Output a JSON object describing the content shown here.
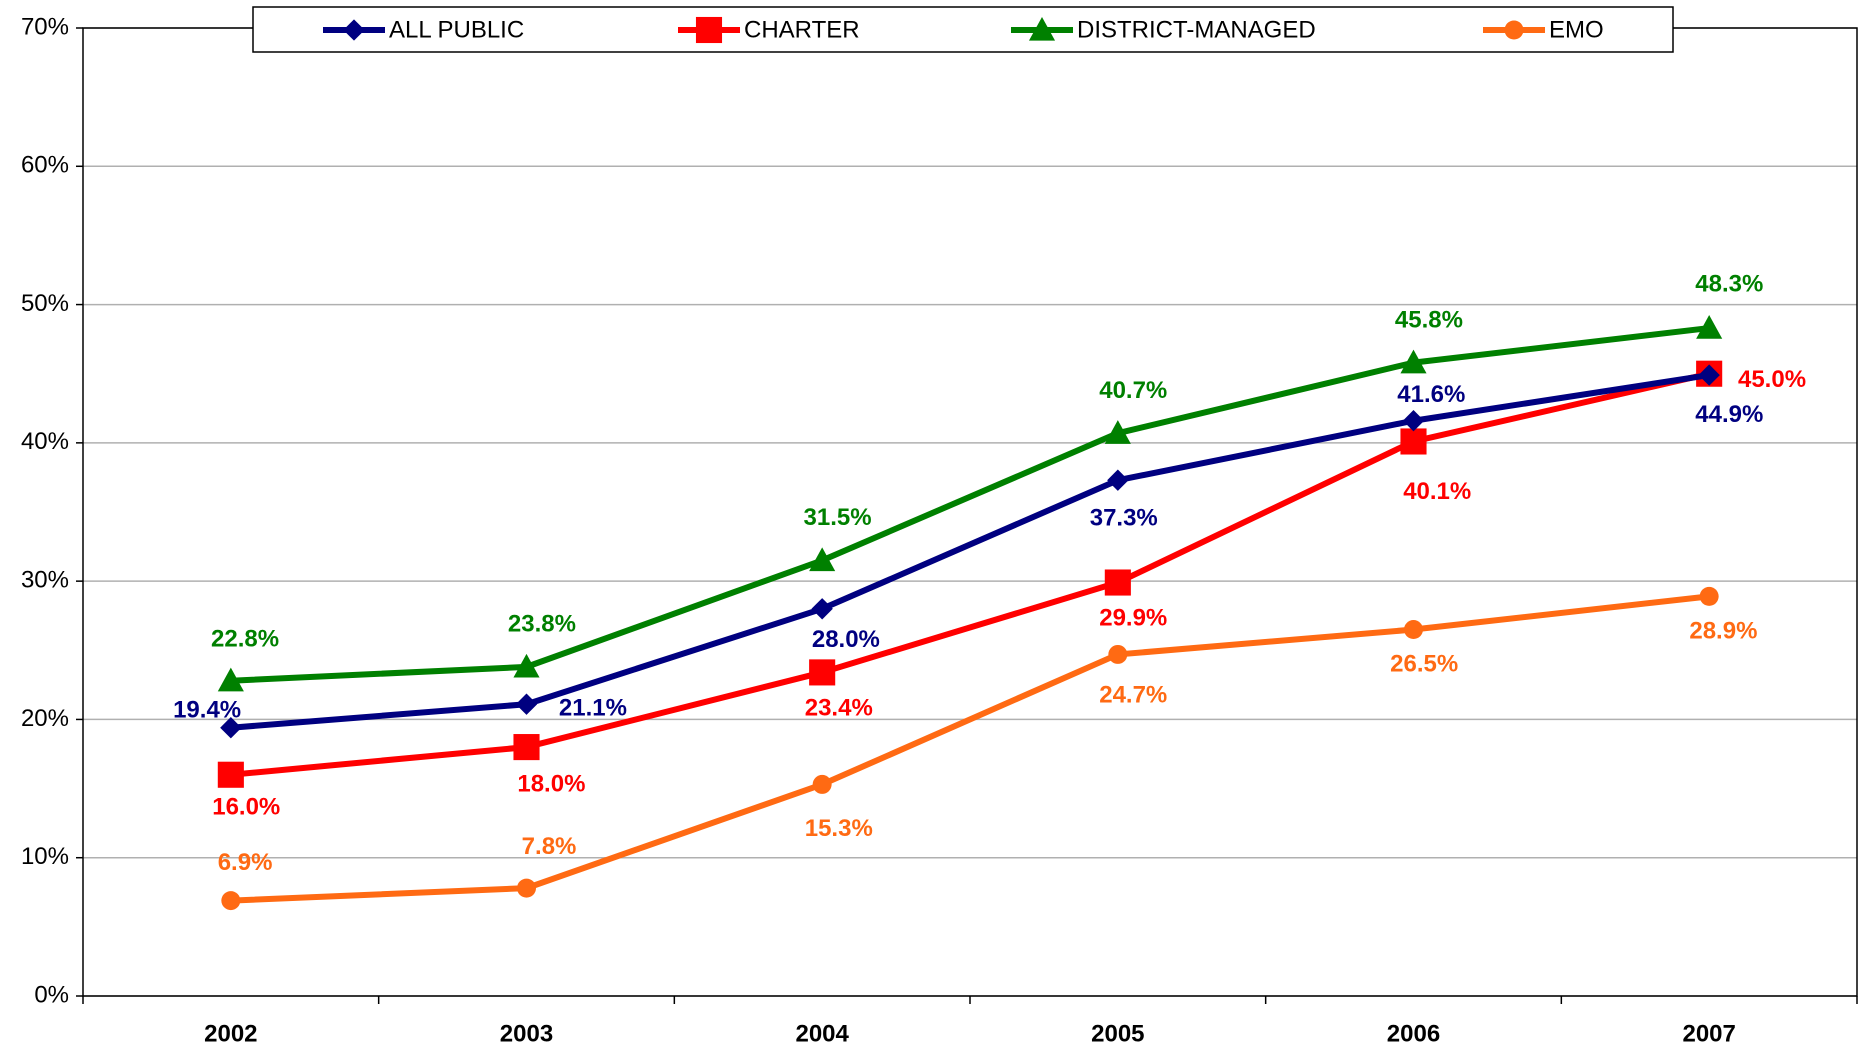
{
  "chart_data": {
    "type": "line",
    "categories": [
      "2002",
      "2003",
      "2004",
      "2005",
      "2006",
      "2007"
    ],
    "series": [
      {
        "name": "ALL PUBLIC",
        "color": "#000080",
        "marker": "diamond",
        "values": [
          19.4,
          21.1,
          28.0,
          37.3,
          41.6,
          44.9
        ],
        "value_labels": [
          "19.4%",
          "21.1%",
          "28.0%",
          "37.3%",
          "41.6%",
          "44.9%"
        ]
      },
      {
        "name": "CHARTER",
        "color": "#ff0000",
        "marker": "square",
        "values": [
          16.0,
          18.0,
          23.4,
          29.9,
          40.1,
          45.0
        ],
        "value_labels": [
          "16.0%",
          "18.0%",
          "23.4%",
          "29.9%",
          "40.1%",
          "45.0%"
        ]
      },
      {
        "name": "DISTRICT-MANAGED",
        "color": "#008000",
        "marker": "triangle",
        "values": [
          22.8,
          23.8,
          31.5,
          40.7,
          45.8,
          48.3
        ],
        "value_labels": [
          "22.8%",
          "23.8%",
          "31.5%",
          "40.7%",
          "45.8%",
          "48.3%"
        ]
      },
      {
        "name": "EMO",
        "color": "#ff6a13",
        "marker": "circle",
        "values": [
          6.9,
          7.8,
          15.3,
          24.7,
          26.5,
          28.9
        ],
        "value_labels": [
          "6.9%",
          "7.8%",
          "15.3%",
          "24.7%",
          "26.5%",
          "28.9%"
        ]
      }
    ],
    "ylim": [
      0,
      70
    ],
    "yticks": [
      {
        "value": 0,
        "label": "0%"
      },
      {
        "value": 10,
        "label": "10%"
      },
      {
        "value": 20,
        "label": "20%"
      },
      {
        "value": 30,
        "label": "30%"
      },
      {
        "value": 40,
        "label": "40%"
      },
      {
        "value": 50,
        "label": "50%"
      },
      {
        "value": 60,
        "label": "60%"
      },
      {
        "value": 70,
        "label": "70%"
      }
    ],
    "grid": true,
    "legend": "top"
  }
}
